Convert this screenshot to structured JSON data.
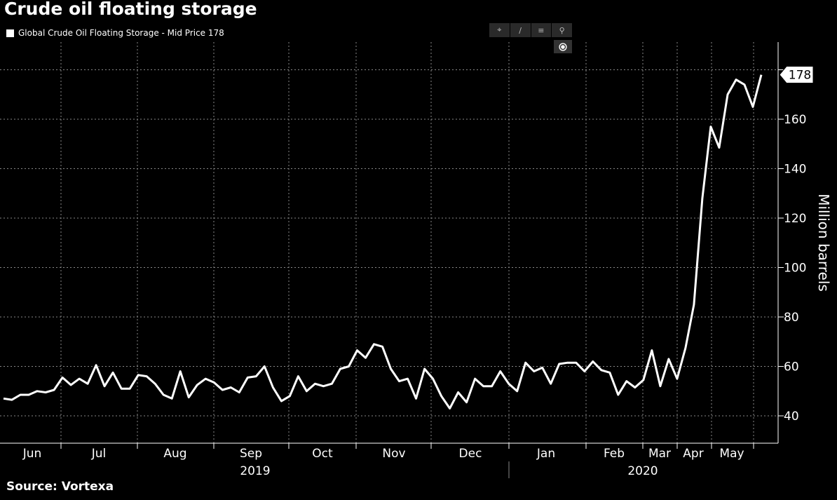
{
  "title": "Crude oil floating storage",
  "source": "Source: Vortexa",
  "legend_label": "Global Crude Oil Floating Storage - Mid Price 178",
  "toolbar": {
    "icons": [
      "crosshair-icon",
      "pen-icon",
      "list-icon",
      "zoom-icon"
    ],
    "overlay_icon": "settings-circle-icon"
  },
  "colors": {
    "background": "#000000",
    "line": "#ffffff",
    "grid": "#888888"
  },
  "chart_data": {
    "type": "line",
    "title": "Crude oil floating storage",
    "ylabel": "Million barrels",
    "xlabel": "",
    "ylim": [
      30,
      190
    ],
    "yticks": [
      40,
      60,
      80,
      100,
      120,
      140,
      160
    ],
    "last_value_label": "178",
    "x_month_labels": [
      "Jun",
      "Jul",
      "Aug",
      "Sep",
      "Oct",
      "Nov",
      "Dec",
      "Jan",
      "Feb",
      "Mar",
      "Apr",
      "May"
    ],
    "x_year_labels": [
      "2019",
      "2020"
    ],
    "grid": true,
    "legend_position": "top-left",
    "series": [
      {
        "name": "Global Crude Oil Floating Storage - Mid Price",
        "values": [
          47,
          46.5,
          48.5,
          48.5,
          50,
          49.5,
          50.5,
          55.5,
          52.5,
          55,
          53,
          60.5,
          52,
          57.5,
          51,
          51,
          56.5,
          56,
          53,
          48.5,
          47,
          58,
          47.5,
          52.5,
          55,
          53.5,
          50.5,
          51.5,
          49.5,
          55.5,
          56,
          60,
          51.5,
          46,
          48,
          56,
          50,
          53,
          52,
          53,
          59,
          60,
          66.5,
          63.5,
          69,
          68,
          59,
          54,
          55,
          47,
          59,
          55,
          48,
          43,
          49.5,
          45.5,
          55,
          52,
          52,
          58,
          53,
          50,
          61.5,
          58,
          59.5,
          53,
          61,
          61.5,
          61.5,
          58,
          62,
          58.5,
          57.5,
          48.5,
          54,
          51.5,
          54.5,
          66.5,
          52,
          63,
          55,
          67.5,
          85,
          128,
          157,
          148.5,
          170,
          176,
          174,
          165,
          178
        ]
      }
    ]
  }
}
